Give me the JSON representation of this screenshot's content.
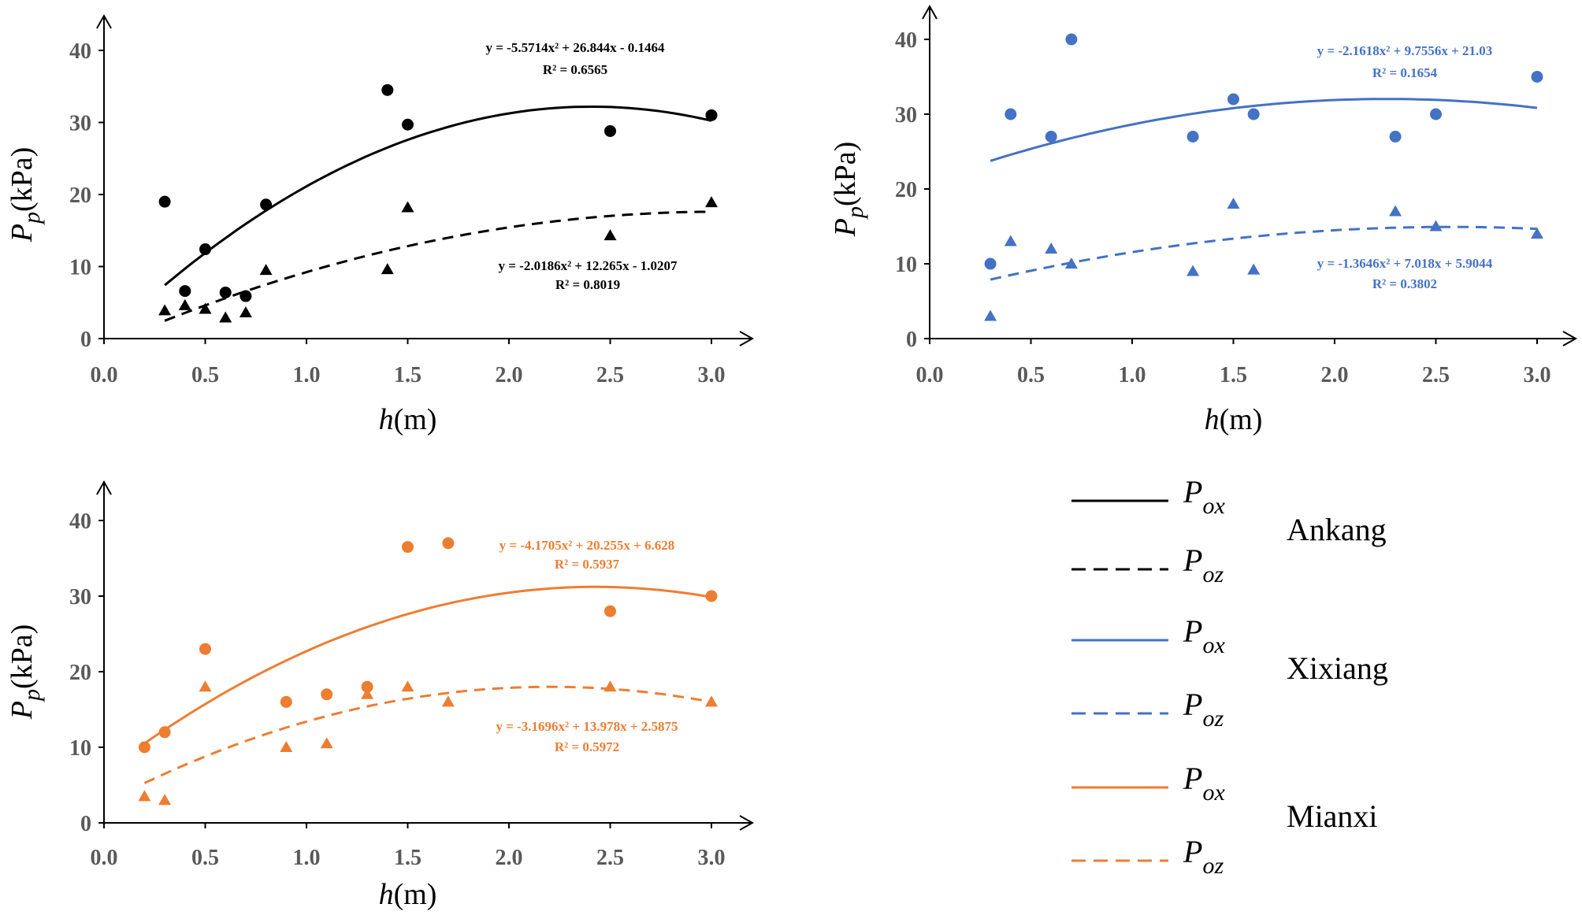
{
  "colors": {
    "Ankang": "#000000",
    "Xixiang": "#4472C4",
    "Mianxi": "#ED7D31",
    "axis": "#595959"
  },
  "chart_data": [
    {
      "type": "scatter",
      "site": "Ankang",
      "xlabel": "h(m)",
      "ylabel": "Pp(kPa)",
      "xlim": [
        0,
        3.0
      ],
      "ylim": [
        0,
        40
      ],
      "xticks": [
        "0.0",
        "0.5",
        "1.0",
        "1.5",
        "2.0",
        "2.5",
        "3.0"
      ],
      "yticks": [
        "0",
        "10",
        "20",
        "30",
        "40"
      ],
      "series": [
        {
          "name": "Pox",
          "marker": "circle",
          "line": "solid",
          "points": [
            [
              0.3,
              19.0
            ],
            [
              0.4,
              6.6
            ],
            [
              0.5,
              12.4
            ],
            [
              0.6,
              6.4
            ],
            [
              0.7,
              5.9
            ],
            [
              0.8,
              18.6
            ],
            [
              1.4,
              34.5
            ],
            [
              1.5,
              29.7
            ],
            [
              2.5,
              28.8
            ],
            [
              3.0,
              31.0
            ]
          ],
          "fit": {
            "a": -5.5714,
            "b": 26.844,
            "c": -0.1464,
            "x_range": [
              0.3,
              3.0
            ]
          },
          "equation": "y = -5.5714x² + 26.844x - 0.1464",
          "r2": "R² = 0.6565"
        },
        {
          "name": "Poz",
          "marker": "triangle",
          "line": "dashed",
          "points": [
            [
              0.3,
              3.9
            ],
            [
              0.4,
              4.6
            ],
            [
              0.5,
              4.1
            ],
            [
              0.6,
              2.9
            ],
            [
              0.7,
              3.6
            ],
            [
              0.8,
              9.5
            ],
            [
              1.4,
              9.6
            ],
            [
              1.5,
              18.2
            ],
            [
              2.5,
              14.3
            ],
            [
              3.0,
              18.9
            ]
          ],
          "fit": {
            "a": -2.0186,
            "b": 12.265,
            "c": -1.0207,
            "x_range": [
              0.3,
              3.0
            ]
          },
          "equation": "y = -2.0186x² + 12.265x - 1.0207",
          "r2": "R² = 0.8019"
        }
      ]
    },
    {
      "type": "scatter",
      "site": "Xixiang",
      "xlabel": "h(m)",
      "ylabel": "Pp(kPa)",
      "xlim": [
        0,
        3.0
      ],
      "ylim": [
        0,
        40
      ],
      "xticks": [
        "0.0",
        "0.5",
        "1.0",
        "1.5",
        "2.0",
        "2.5",
        "3.0"
      ],
      "yticks": [
        "0",
        "10",
        "20",
        "30",
        "40"
      ],
      "series": [
        {
          "name": "Pox",
          "marker": "circle",
          "line": "solid",
          "points": [
            [
              0.3,
              10.0
            ],
            [
              0.4,
              30.0
            ],
            [
              0.6,
              27.0
            ],
            [
              0.7,
              40.0
            ],
            [
              1.3,
              27.0
            ],
            [
              1.5,
              32.0
            ],
            [
              1.6,
              30.0
            ],
            [
              2.3,
              27.0
            ],
            [
              2.5,
              30.0
            ],
            [
              3.0,
              35.0
            ]
          ],
          "fit": {
            "a": -2.1618,
            "b": 9.7556,
            "c": 21.03,
            "x_range": [
              0.3,
              3.0
            ]
          },
          "equation": "y = -2.1618x² + 9.7556x + 21.03",
          "r2": "R² = 0.1654"
        },
        {
          "name": "Poz",
          "marker": "triangle",
          "line": "dashed",
          "points": [
            [
              0.3,
              3.0
            ],
            [
              0.4,
              13.0
            ],
            [
              0.6,
              12.0
            ],
            [
              0.7,
              10.0
            ],
            [
              1.3,
              9.0
            ],
            [
              1.5,
              18.0
            ],
            [
              1.6,
              9.2
            ],
            [
              2.3,
              17.0
            ],
            [
              2.5,
              15.0
            ],
            [
              3.0,
              14.0
            ]
          ],
          "fit": {
            "a": -1.3646,
            "b": 7.018,
            "c": 5.9044,
            "x_range": [
              0.3,
              3.0
            ]
          },
          "equation": "y = -1.3646x² + 7.018x + 5.9044",
          "r2": "R² = 0.3802"
        }
      ]
    },
    {
      "type": "scatter",
      "site": "Mianxi",
      "xlabel": "h(m)",
      "ylabel": "Pp(kPa)",
      "xlim": [
        0,
        3.0
      ],
      "ylim": [
        0,
        40
      ],
      "xticks": [
        "0.0",
        "0.5",
        "1.0",
        "1.5",
        "2.0",
        "2.5",
        "3.0"
      ],
      "yticks": [
        "0",
        "10",
        "20",
        "30",
        "40"
      ],
      "series": [
        {
          "name": "Pox",
          "marker": "circle",
          "line": "solid",
          "points": [
            [
              0.2,
              10.0
            ],
            [
              0.3,
              12.0
            ],
            [
              0.5,
              23.0
            ],
            [
              0.9,
              16.0
            ],
            [
              1.1,
              17.0
            ],
            [
              1.3,
              18.0
            ],
            [
              1.5,
              36.5
            ],
            [
              1.7,
              37.0
            ],
            [
              2.5,
              28.0
            ],
            [
              3.0,
              30.0
            ]
          ],
          "fit": {
            "a": -4.1705,
            "b": 20.255,
            "c": 6.628,
            "x_range": [
              0.2,
              3.0
            ]
          },
          "equation": "y = -4.1705x² + 20.255x + 6.628",
          "r2": "R² = 0.5937"
        },
        {
          "name": "Poz",
          "marker": "triangle",
          "line": "dashed",
          "points": [
            [
              0.2,
              3.5
            ],
            [
              0.3,
              3.0
            ],
            [
              0.5,
              18.0
            ],
            [
              0.9,
              10.0
            ],
            [
              1.1,
              10.5
            ],
            [
              1.3,
              17.0
            ],
            [
              1.5,
              18.0
            ],
            [
              1.7,
              16.0
            ],
            [
              2.5,
              18.0
            ],
            [
              3.0,
              16.0
            ]
          ],
          "fit": {
            "a": -3.1696,
            "b": 13.978,
            "c": 2.5875,
            "x_range": [
              0.2,
              3.0
            ]
          },
          "equation": "y = -3.1696x² + 13.978x + 2.5875",
          "r2": "R² = 0.5972"
        }
      ]
    }
  ],
  "legend": {
    "groups": [
      {
        "site": "Ankang",
        "entries": [
          {
            "symbol": "P",
            "sub": "ox",
            "line": "solid"
          },
          {
            "symbol": "P",
            "sub": "oz",
            "line": "dashed"
          }
        ]
      },
      {
        "site": "Xixiang",
        "entries": [
          {
            "symbol": "P",
            "sub": "ox",
            "line": "solid"
          },
          {
            "symbol": "P",
            "sub": "oz",
            "line": "dashed"
          }
        ]
      },
      {
        "site": "Mianxi",
        "entries": [
          {
            "symbol": "P",
            "sub": "ox",
            "line": "solid"
          },
          {
            "symbol": "P",
            "sub": "oz",
            "line": "dashed"
          }
        ]
      }
    ]
  }
}
